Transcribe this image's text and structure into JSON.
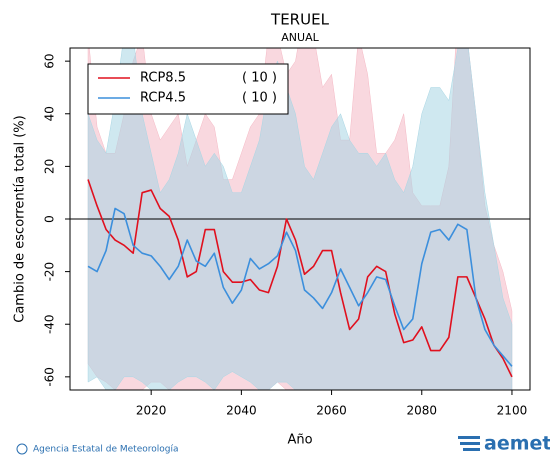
{
  "chart_data": {
    "type": "line",
    "title": "TERUEL",
    "subtitle": "ANUAL",
    "x_label": "Año",
    "y_label": "Cambio de escorrentía total (%)",
    "xlim": [
      2002,
      2104
    ],
    "ylim": [
      -65,
      65
    ],
    "xticks": [
      2020,
      2040,
      2060,
      2080,
      2100
    ],
    "yticks": [
      -60,
      -40,
      -20,
      0,
      20,
      40,
      60
    ],
    "legend": "upper left",
    "x": [
      2006,
      2008,
      2010,
      2012,
      2014,
      2016,
      2018,
      2020,
      2022,
      2024,
      2026,
      2028,
      2030,
      2032,
      2034,
      2036,
      2038,
      2040,
      2042,
      2044,
      2046,
      2048,
      2050,
      2052,
      2054,
      2056,
      2058,
      2060,
      2062,
      2064,
      2066,
      2068,
      2070,
      2072,
      2074,
      2076,
      2078,
      2080,
      2082,
      2084,
      2086,
      2088,
      2090,
      2092,
      2094,
      2096,
      2098,
      2100
    ],
    "series": [
      {
        "name": "RCP8.5",
        "model_count": "( 10 )",
        "color": "#e0101e",
        "band_color": "#f4b8c4",
        "values": [
          15,
          5,
          -4,
          -8,
          -10,
          -13,
          10,
          11,
          4,
          1,
          -8,
          -22,
          -20,
          -4,
          -4,
          -20,
          -24,
          -24,
          -23,
          -27,
          -28,
          -18,
          0,
          -8,
          -21,
          -18,
          -12,
          -12,
          -28,
          -42,
          -38,
          -22,
          -18,
          -20,
          -36,
          -47,
          -46,
          -41,
          -50,
          -50,
          -45,
          -22,
          -22,
          -30,
          -38,
          -48,
          -53,
          -60
        ],
        "upper": [
          70,
          35,
          25,
          25,
          40,
          60,
          70,
          40,
          30,
          35,
          40,
          20,
          30,
          40,
          35,
          15,
          15,
          25,
          35,
          40,
          70,
          70,
          55,
          60,
          80,
          70,
          50,
          55,
          30,
          30,
          70,
          55,
          25,
          25,
          30,
          40,
          10,
          5,
          5,
          5,
          20,
          80,
          70,
          40,
          5,
          -10,
          -20,
          -35
        ],
        "lower": [
          -55,
          -60,
          -62,
          -65,
          -65,
          -65,
          -65,
          -62,
          -62,
          -65,
          -65,
          -65,
          -65,
          -65,
          -65,
          -65,
          -65,
          -65,
          -65,
          -65,
          -65,
          -62,
          -65,
          -65,
          -65,
          -65,
          -65,
          -65,
          -65,
          -65,
          -65,
          -65,
          -65,
          -65,
          -65,
          -65,
          -65,
          -65,
          -65,
          -65,
          -65,
          -65,
          -65,
          -65,
          -65,
          -65,
          -65,
          -65
        ]
      },
      {
        "name": "RCP4.5",
        "model_count": "( 10 )",
        "color": "#3c8fdc",
        "band_color": "#a8d6e4",
        "values": [
          -18,
          -20,
          -12,
          4,
          2,
          -10,
          -13,
          -14,
          -18,
          -23,
          -18,
          -8,
          -16,
          -18,
          -13,
          -26,
          -32,
          -27,
          -15,
          -19,
          -17,
          -14,
          -5,
          -12,
          -27,
          -30,
          -34,
          -28,
          -19,
          -26,
          -33,
          -28,
          -22,
          -23,
          -33,
          -42,
          -38,
          -17,
          -5,
          -4,
          -8,
          -2,
          -4,
          -30,
          -42,
          -48,
          -52,
          -56
        ],
        "upper": [
          40,
          30,
          25,
          45,
          70,
          70,
          40,
          25,
          10,
          15,
          25,
          40,
          30,
          20,
          25,
          20,
          10,
          10,
          20,
          30,
          50,
          60,
          50,
          40,
          20,
          15,
          25,
          35,
          40,
          30,
          25,
          25,
          20,
          25,
          15,
          10,
          20,
          40,
          50,
          50,
          45,
          65,
          70,
          40,
          10,
          -10,
          -30,
          -40
        ],
        "lower": [
          -62,
          -60,
          -65,
          -65,
          -60,
          -60,
          -62,
          -65,
          -65,
          -65,
          -62,
          -60,
          -60,
          -62,
          -65,
          -60,
          -58,
          -60,
          -62,
          -65,
          -65,
          -62,
          -62,
          -65,
          -65,
          -65,
          -65,
          -65,
          -65,
          -65,
          -65,
          -65,
          -65,
          -65,
          -65,
          -65,
          -65,
          -65,
          -65,
          -65,
          -65,
          -65,
          -65,
          -65,
          -65,
          -65,
          -65,
          -65
        ]
      }
    ]
  },
  "footer": {
    "credit": "Agencia Estatal de Meteorología",
    "logo": "aemet"
  }
}
